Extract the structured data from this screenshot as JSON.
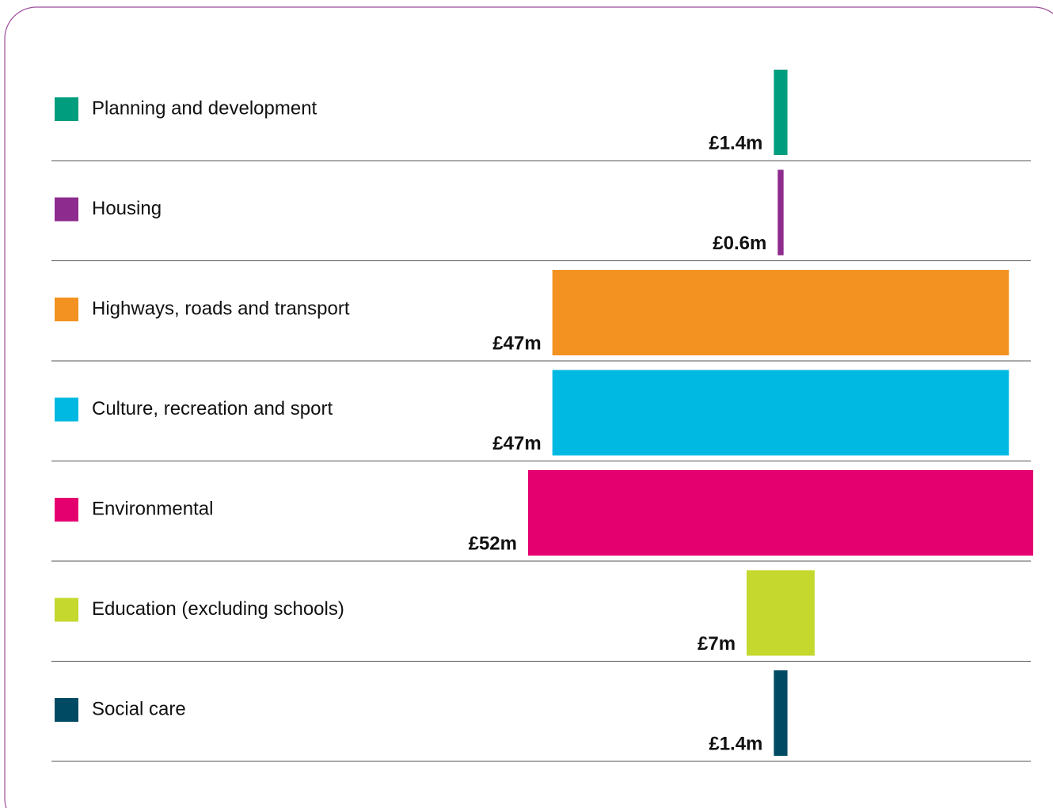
{
  "chart_data": {
    "type": "bar",
    "categories": [
      "Planning and development",
      "Housing",
      "Highways, roads and transport",
      "Culture, recreation and sport",
      "Environmental",
      "Education (excluding schools)",
      "Social care"
    ],
    "values": [
      1.4,
      0.6,
      47,
      47,
      52,
      7,
      1.4
    ],
    "value_labels": [
      "£1.4m",
      "£0.6m",
      "£47m",
      "£47m",
      "£52m",
      "£7m",
      "£1.4m"
    ],
    "colors": [
      "#009e7e",
      "#8e2b8e",
      "#f39220",
      "#00b9e2",
      "#e5006f",
      "#c4d82e",
      "#004b63"
    ]
  }
}
